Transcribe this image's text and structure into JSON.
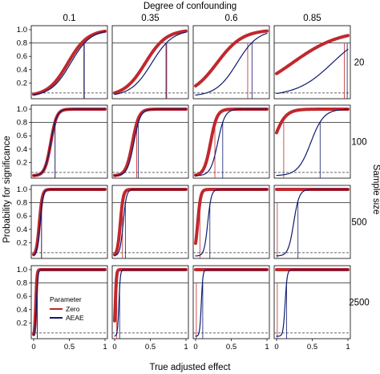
{
  "chart_data": {
    "type": "line",
    "title": "Degree of confounding",
    "xlabel": "True adjusted effect",
    "ylabel": "Probability for significance",
    "right_label": "Sample size",
    "column_labels": [
      "0.1",
      "0.35",
      "0.6",
      "0.85"
    ],
    "row_labels": [
      "20",
      "100",
      "500",
      "2500"
    ],
    "xlim": [
      0,
      1
    ],
    "ylim": [
      0,
      1
    ],
    "x_ticks": [
      "0",
      "0.5",
      "1"
    ],
    "y_ticks": [
      "0.2",
      "0.4",
      "0.6",
      "0.8",
      "1.0"
    ],
    "reference_lines": {
      "power": 0.8,
      "alpha": 0.05
    },
    "legend": {
      "title": "Parameter",
      "position": "inside bottom-left panel",
      "entries": [
        "Zero",
        "AEAE"
      ]
    },
    "series_colors": {
      "Zero": "#c0282d",
      "AEAE": "#0d1a6e"
    },
    "series": [
      {
        "name": "Zero",
        "color": "#c0282d",
        "panels": [
          [
            {
              "x50": 0.48,
              "k": 7.2,
              "x80": 0.7
            },
            {
              "x50": 0.43,
              "k": 6.8,
              "x80": 0.73
            },
            {
              "x50": 0.3,
              "k": 5.6,
              "x80": 0.73
            },
            {
              "x50": 0.22,
              "k": 3.0,
              "x80": 0.95
            }
          ],
          [
            {
              "x50": 0.24,
              "k": 24,
              "x80": 0.3
            },
            {
              "x50": 0.25,
              "k": 22,
              "x80": 0.31
            },
            {
              "x50": 0.21,
              "k": 22,
              "x80": 0.27
            },
            {
              "x50": -0.05,
              "k": 12,
              "x80": 0.1
            }
          ],
          [
            {
              "x50": 0.08,
              "k": 48,
              "x80": 0.11
            },
            {
              "x50": 0.08,
              "k": 48,
              "x80": 0.11
            },
            {
              "x50": 0.03,
              "k": 48,
              "x80": 0.06
            },
            {
              "x50": -0.2,
              "k": 40,
              "x80": 0.01
            }
          ],
          [
            {
              "x50": 0.03,
              "k": 120,
              "x80": 0.05
            },
            {
              "x50": 0.01,
              "k": 120,
              "x80": 0.03
            },
            {
              "x50": -0.1,
              "k": 120,
              "x80": 0.01
            },
            {
              "x50": -0.3,
              "k": 120,
              "x80": 0.01
            }
          ]
        ]
      },
      {
        "name": "AEAE",
        "color": "#0d1a6e",
        "panels": [
          [
            {
              "x50": 0.52,
              "k": 7.2,
              "x80": 0.71
            },
            {
              "x50": 0.52,
              "k": 6.8,
              "x80": 0.72
            },
            {
              "x50": 0.58,
              "k": 6.8,
              "x80": 0.79
            },
            {
              "x50": 0.78,
              "k": 4.0,
              "x80": 0.99
            }
          ],
          [
            {
              "x50": 0.24,
              "k": 24,
              "x80": 0.3
            },
            {
              "x50": 0.27,
              "k": 22,
              "x80": 0.33
            },
            {
              "x50": 0.31,
              "k": 20,
              "x80": 0.38
            },
            {
              "x50": 0.48,
              "k": 11,
              "x80": 0.61
            }
          ],
          [
            {
              "x50": 0.09,
              "k": 48,
              "x80": 0.11
            },
            {
              "x50": 0.12,
              "k": 44,
              "x80": 0.15
            },
            {
              "x50": 0.17,
              "k": 40,
              "x80": 0.2
            },
            {
              "x50": 0.24,
              "k": 26,
              "x80": 0.3
            }
          ],
          [
            {
              "x50": 0.04,
              "k": 100,
              "x80": 0.05
            },
            {
              "x50": 0.06,
              "k": 100,
              "x80": 0.07
            },
            {
              "x50": 0.08,
              "k": 90,
              "x80": 0.1
            },
            {
              "x50": 0.12,
              "k": 70,
              "x80": 0.14
            }
          ]
        ]
      }
    ]
  }
}
